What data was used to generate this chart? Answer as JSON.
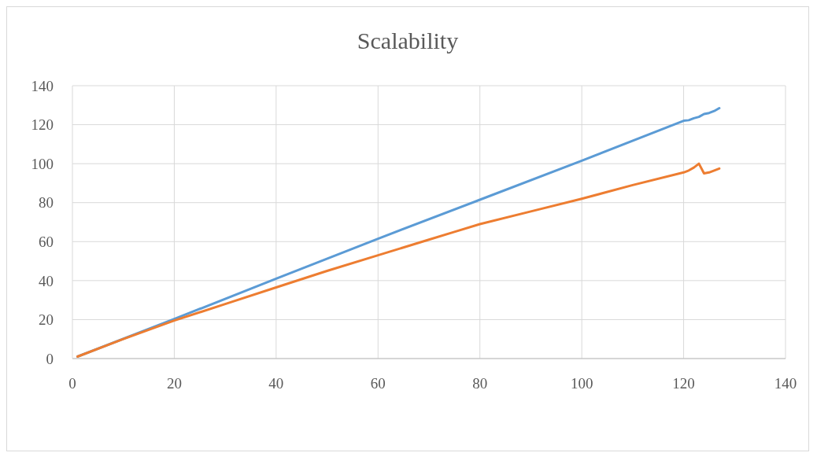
{
  "chart_data": {
    "type": "line",
    "title": "Scalability",
    "xlim": [
      0,
      140
    ],
    "xticks": [
      0,
      20,
      40,
      60,
      80,
      100,
      120,
      140
    ],
    "ylim": [
      0,
      140
    ],
    "yticks": [
      0,
      20,
      40,
      60,
      80,
      100,
      120,
      140
    ],
    "grid": true,
    "marker": "none",
    "line_style": "solid",
    "series": [
      {
        "color": "#5b9bd5",
        "x": [
          1,
          20,
          40,
          60,
          80,
          100,
          120,
          121,
          122,
          123,
          124,
          125,
          126,
          127
        ],
        "values": [
          1,
          20.3,
          41,
          61.5,
          81.5,
          101.5,
          122,
          122.3,
          123.3,
          124,
          125.5,
          126,
          127,
          128.5
        ]
      },
      {
        "color": "#ed7d31",
        "x": [
          1,
          10,
          20,
          30,
          40,
          50,
          60,
          70,
          75,
          80,
          90,
          100,
          110,
          120,
          121,
          122,
          123,
          124,
          125,
          126,
          127
        ],
        "values": [
          1,
          10,
          19.5,
          28,
          36.5,
          45,
          53,
          61,
          65,
          69,
          75.5,
          82,
          89,
          95.5,
          96.5,
          98,
          100,
          95,
          95.5,
          96.5,
          97.5
        ]
      }
    ]
  }
}
